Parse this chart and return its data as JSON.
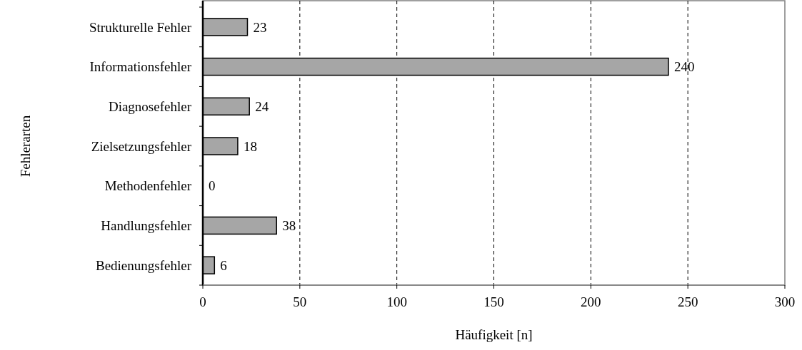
{
  "chart_data": {
    "type": "bar",
    "orientation": "horizontal",
    "xlabel": "Häufigkeit [n]",
    "ylabel": "Fehlerarten",
    "categories": [
      "Strukturelle Fehler",
      "Informationsfehler",
      "Diagnosefehler",
      "Zielsetzungsfehler",
      "Methodenfehler",
      "Handlungsfehler",
      "Bedienungsfehler"
    ],
    "values": [
      23,
      240,
      24,
      18,
      0,
      38,
      6
    ],
    "color": "#a6a6a6",
    "xlim": [
      0,
      300
    ],
    "xticks": [
      0,
      50,
      100,
      150,
      200,
      250,
      300
    ],
    "grid": "x",
    "data_labels": true
  }
}
